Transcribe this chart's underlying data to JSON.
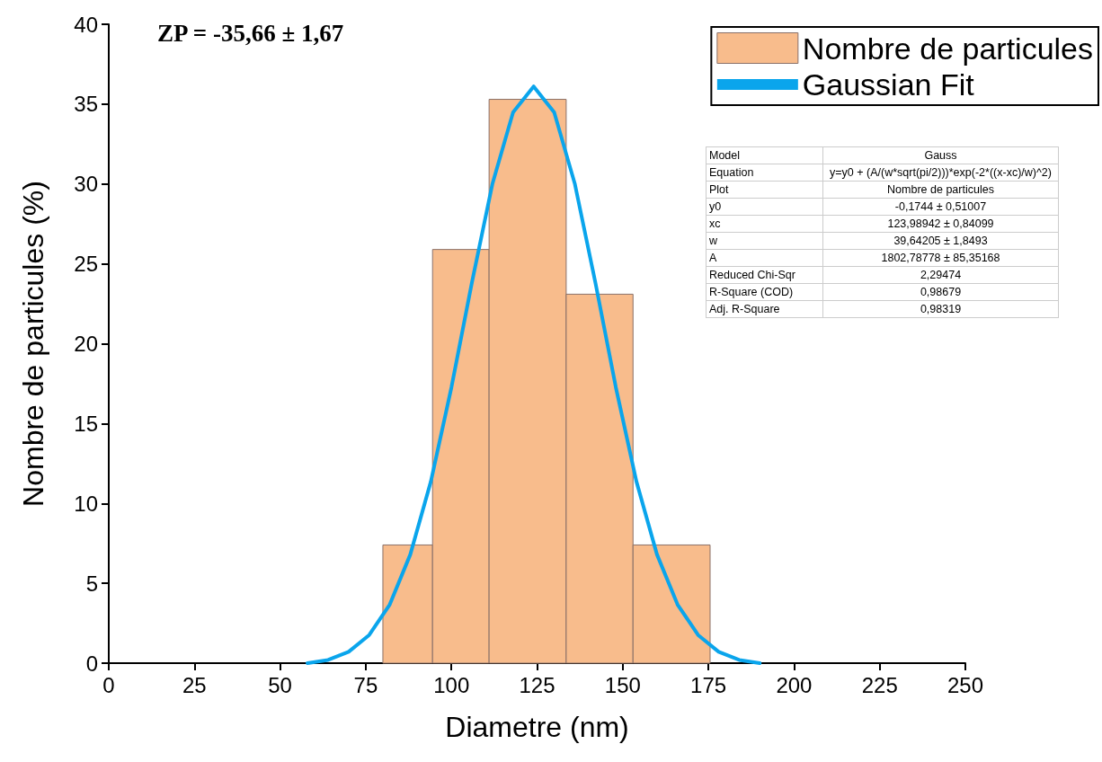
{
  "chart_data": {
    "type": "histogram",
    "xlabel": "Diametre (nm)",
    "ylabel": "Nombre de particules (%)",
    "bins": [
      80,
      94.5,
      111,
      133.5,
      153,
      175.5
    ],
    "series": [
      {
        "name": "Nombre de particules",
        "color": "#f8bc8c",
        "values": [
          7.4,
          25.9,
          35.3,
          23.1,
          7.4
        ]
      },
      {
        "name": "Gaussian Fit",
        "type": "line",
        "color": "#0aa5ec",
        "x": [
          58,
          64,
          70,
          76,
          82,
          88,
          94,
          100,
          106,
          112,
          118,
          124,
          130,
          136,
          142,
          148,
          154,
          160,
          166,
          172,
          178,
          184,
          190
        ],
        "values": [
          0,
          0.2,
          0.71,
          1.76,
          3.67,
          6.8,
          11.37,
          17.26,
          23.85,
          30.03,
          34.49,
          36.11,
          34.49,
          30.03,
          23.85,
          17.26,
          11.37,
          6.8,
          3.67,
          1.76,
          0.71,
          0.2,
          0
        ]
      }
    ],
    "xlim": [
      0,
      250
    ],
    "xticks": [
      0,
      25,
      50,
      75,
      100,
      125,
      150,
      175,
      200,
      225,
      250
    ],
    "ylim": [
      0,
      40
    ],
    "yticks": [
      0,
      5,
      10,
      15,
      20,
      25,
      30,
      35,
      40
    ],
    "grid": false,
    "legend": "top right",
    "marker": "none",
    "line_style": "solid",
    "annotations": [
      "ZP = -35,66 ± 1,67",
      "Model",
      "Gauss",
      "Equation",
      "y=y0 + (A/(w*sqrt(pi/2)))*exp(-2*((x-xc)/w)^2)",
      "Plot",
      "Nombre de particules",
      "y0",
      "-0,1744 ± 0,51007",
      "xc",
      "123,98942 ± 0,84099",
      "w",
      "39,64205 ± 1,8493",
      "A",
      "1802,78778 ± 85,35168",
      "Reduced Chi-Sqr",
      "2,29474",
      "R-Square (COD)",
      "0,98679",
      "Adj. R-Square",
      "0,98319"
    ]
  }
}
